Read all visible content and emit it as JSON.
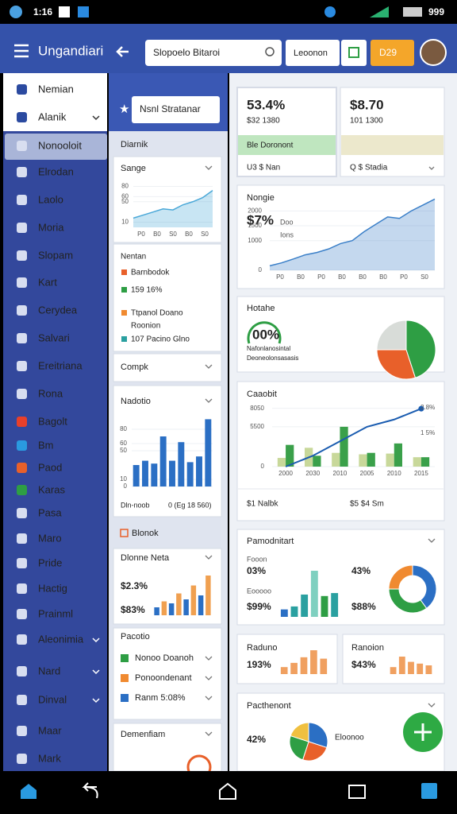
{
  "status_bar": {
    "time": "1:16",
    "battery": "999"
  },
  "header": {
    "title": "Ungandiari",
    "search": "Slopoelo Bitaroi",
    "button": "Leoonon",
    "badge": "D29"
  },
  "sidebar": {
    "items": [
      "Nemian",
      "Alanik",
      "Nonooloit",
      "Elrodan",
      "Laolo",
      "Moria",
      "Slopam",
      "Kart",
      "Cerydea",
      "Salvari",
      "Ereitriana",
      "Rona",
      "Bagolt",
      "Bm",
      "Paod",
      "Karas",
      "Pasa",
      "Maro",
      "Pride",
      "Hactig",
      "Prainml",
      "Aleonimia",
      "Nard",
      "Dinval",
      "Maar",
      "Mark"
    ]
  },
  "middle": {
    "search": "Nsnl Stratanar",
    "section": "Diarnik",
    "sange": {
      "title": "Sange",
      "chart": {
        "type": "area",
        "color": "#4aa8d8",
        "values": [
          18,
          24,
          30,
          36,
          34,
          44,
          50,
          58,
          72
        ],
        "ylim": [
          0,
          90
        ],
        "yticks": [
          10,
          50,
          60,
          80
        ],
        "x_labels": [
          "P0",
          "B0",
          "S0",
          "B0",
          "S0"
        ]
      }
    },
    "nentan": {
      "title": "Nentan",
      "items": [
        "Barnbodok",
        "159 16%",
        "Ttpanol Doano",
        "Roonion",
        "107 Pacino Glno"
      ]
    },
    "compk": "Compk",
    "nadotio": {
      "title": "Nadotio",
      "chart": {
        "type": "bar",
        "color": "#2b6fc4",
        "values": [
          30,
          36,
          32,
          70,
          36,
          62,
          34,
          42,
          94
        ],
        "ylim": [
          0,
          100
        ],
        "yticks": [
          0,
          10,
          50,
          60,
          80
        ]
      },
      "footer": [
        "Dln-noob",
        "0 (Eg 18 560)"
      ]
    },
    "blonok": "Blonok",
    "dlonne": {
      "title": "Dlonne Neta",
      "values": [
        "$2.3%",
        "$83%"
      ],
      "chart": {
        "type": "bar",
        "colors": [
          "#2b6fc4",
          "#f0a050",
          "#2b6fc4",
          "#f0a050",
          "#2b6fc4",
          "#f0a050",
          "#2b6fc4",
          "#f0a050"
        ],
        "values": [
          8,
          14,
          12,
          22,
          16,
          30,
          20,
          40
        ]
      }
    },
    "pacotio": {
      "title": "Pacotio",
      "items": [
        "Nonoo Doanoh",
        "Ponoondenant",
        "Ranm 5:08%"
      ]
    },
    "demenfiam": "Demenfiam"
  },
  "right": {
    "card1": {
      "value": "53.4%",
      "sub": "$32 1380",
      "band": "Ble Doronont",
      "foot": "U3 $ Nan"
    },
    "card2": {
      "value": "$8.70",
      "sub": "101 1300",
      "foot": "Q $ Stadia"
    },
    "nongie": {
      "title": "Nongie",
      "value": "$7%",
      "note": "Doo",
      "note2": "Ions",
      "chart": {
        "type": "area",
        "color": "#3a7fc8",
        "values": [
          150,
          250,
          380,
          520,
          600,
          720,
          900,
          1000,
          1300,
          1550,
          1800,
          1750,
          2000,
          2200,
          2400
        ],
        "ylim": [
          0,
          2600
        ],
        "yticks": [
          0,
          1000,
          1500,
          2000
        ],
        "x_labels": [
          "P0",
          "B0",
          "P0",
          "B0",
          "B0",
          "B0",
          "P0",
          "S0"
        ]
      }
    },
    "hotahe": {
      "title": "Hotahe",
      "value": "00%",
      "lines": [
        "Nafonlanosintal",
        "Deoneolonsasasis"
      ],
      "chart": {
        "type": "pie",
        "values": [
          45,
          30,
          25
        ],
        "colors": [
          "#2e9e44",
          "#e8602a",
          "#d8dcd8"
        ]
      }
    },
    "caaobit": {
      "title": "Caaobit",
      "chart": {
        "type": "combo",
        "ylim": [
          0,
          9000
        ],
        "yticks": [
          0,
          5500,
          8050
        ],
        "y2_labels": [
          "2.8%",
          "1 5%"
        ],
        "x_labels": [
          "2000",
          "2030",
          "2010",
          "2005",
          "2010",
          "2015"
        ],
        "series": [
          {
            "color": "#c8d89a",
            "values": [
              1200,
              2600,
              1900,
              1700,
              1800,
              1300
            ]
          },
          {
            "color": "#3aa04a",
            "values": [
              3000,
              1500,
              5500,
              1900,
              3200,
              1300
            ]
          }
        ],
        "line": {
          "color": "#1a5cb0",
          "values": [
            0,
            1500,
            3500,
            5500,
            6500,
            8000
          ]
        }
      },
      "foot": [
        "$1 Nalbk",
        "$5 $4 Sm"
      ]
    },
    "pamodnitart": {
      "title": "Pamodnitart",
      "labels": [
        "Fooon",
        "Eooooo"
      ],
      "values": [
        "03%",
        "$99%",
        "43%",
        "$88%"
      ],
      "chart": {
        "type": "bar",
        "colors": [
          "#2b6fc4",
          "#2aa0a0",
          "#2aa0a0",
          "#7fd0c0",
          "#2e9e44",
          "#2aa0a0"
        ],
        "values": [
          10,
          14,
          30,
          62,
          28,
          32
        ]
      },
      "donut": {
        "type": "pie",
        "values": [
          40,
          35,
          25
        ],
        "colors": [
          "#2b6fc4",
          "#2e9e44",
          "#f08a30"
        ]
      }
    },
    "raduno": {
      "title": "Raduno",
      "value": "193%",
      "chart": {
        "type": "bar",
        "color": "#f0a060",
        "values": [
          10,
          16,
          24,
          34,
          22
        ]
      }
    },
    "ranoion": {
      "title": "Ranoion",
      "value": "$43%",
      "chart": {
        "type": "bar",
        "color": "#f0a060",
        "values": [
          8,
          20,
          14,
          12,
          10
        ]
      }
    },
    "pacthenont": {
      "title": "Pacthenont",
      "value": "42%",
      "label": "Eloonoo",
      "chart": {
        "type": "pie",
        "values": [
          30,
          25,
          25,
          20
        ],
        "colors": [
          "#2b6fc4",
          "#e8602a",
          "#2e9e44",
          "#f0c040"
        ]
      }
    }
  }
}
